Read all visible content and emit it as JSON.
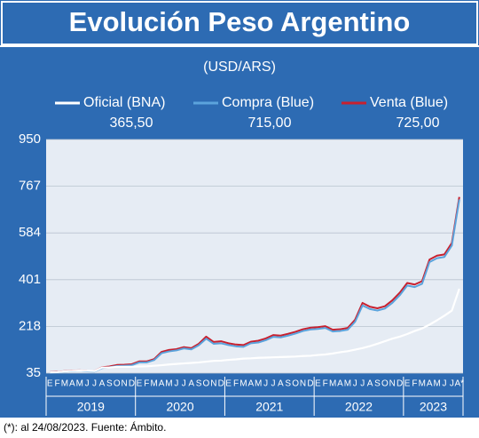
{
  "chart_data": {
    "type": "line",
    "title": "Evolución Peso Argentino",
    "subtitle": "(USD/ARS)",
    "footnote": "(*): al 24/08/2023. Fuente: Ámbito.",
    "categories": [
      "E",
      "F",
      "M",
      "A",
      "M",
      "J",
      "J",
      "A",
      "S",
      "O",
      "N",
      "D",
      "E",
      "F",
      "M",
      "A",
      "M",
      "J",
      "J",
      "A",
      "S",
      "O",
      "N",
      "D",
      "E",
      "F",
      "M",
      "A",
      "M",
      "J",
      "J",
      "A",
      "S",
      "O",
      "N",
      "D",
      "E",
      "F",
      "M",
      "A",
      "M",
      "J",
      "J",
      "A",
      "S",
      "O",
      "N",
      "D",
      "E",
      "F",
      "M",
      "A",
      "M",
      "J",
      "J",
      "A*"
    ],
    "groups": [
      "2019",
      "2020",
      "2021",
      "2022",
      "2023"
    ],
    "ylim": [
      35,
      950
    ],
    "yticks": [
      35,
      218,
      401,
      584,
      767,
      950
    ],
    "grid": true,
    "series": [
      {
        "name": "Oficial (BNA)",
        "last_label": "365,50",
        "color": "#ffffff",
        "values": [
          38,
          39,
          42,
          44,
          45,
          44,
          43,
          57,
          57,
          60,
          60,
          60,
          61,
          62,
          64,
          66,
          69,
          71,
          73,
          75,
          77,
          80,
          83,
          84,
          87,
          89,
          92,
          93,
          95,
          96,
          97,
          98,
          99,
          100,
          102,
          103,
          106,
          108,
          112,
          117,
          121,
          127,
          133,
          141,
          150,
          160,
          170,
          178,
          188,
          200,
          210,
          225,
          242,
          260,
          280,
          365.5
        ]
      },
      {
        "name": "Compra (Blue)",
        "last_label": "715,00",
        "color": "#5ba3dc",
        "values": [
          37,
          38,
          41,
          43,
          44,
          42,
          41,
          55,
          58,
          63,
          64,
          66,
          77,
          77,
          86,
          113,
          120,
          124,
          132,
          128,
          144,
          170,
          150,
          152,
          145,
          140,
          138,
          152,
          155,
          164,
          177,
          175,
          182,
          190,
          200,
          206,
          208,
          212,
          198,
          200,
          205,
          236,
          300,
          286,
          280,
          288,
          310,
          340,
          378,
          372,
          385,
          470,
          485,
          490,
          535,
          715
        ]
      },
      {
        "name": "Venta (Blue)",
        "last_label": "725,00",
        "color": "#c8202e",
        "values": [
          39,
          40,
          43,
          45,
          46,
          44,
          43,
          58,
          61,
          67,
          68,
          70,
          81,
          81,
          90,
          118,
          126,
          129,
          137,
          133,
          150,
          178,
          157,
          160,
          152,
          147,
          145,
          158,
          162,
          171,
          184,
          182,
          189,
          197,
          207,
          213,
          215,
          219,
          205,
          207,
          212,
          244,
          310,
          295,
          289,
          297,
          320,
          350,
          388,
          382,
          395,
          480,
          495,
          500,
          545,
          725
        ]
      }
    ]
  }
}
